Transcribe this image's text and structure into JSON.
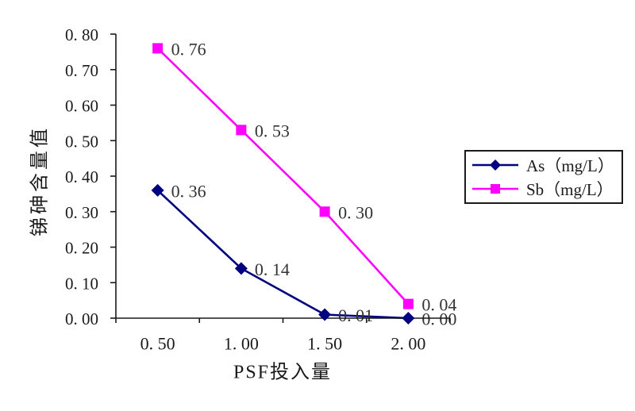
{
  "chart_data": {
    "type": "line",
    "title": "",
    "xlabel": "PSF投入量",
    "ylabel": "锑砷含量值",
    "x": [
      0.5,
      1.0,
      1.5,
      2.0
    ],
    "x_tick_labels": [
      "0. 50",
      "1. 00",
      "1. 50",
      "2. 00"
    ],
    "ylim": [
      0,
      0.8
    ],
    "y_tick_step": 0.1,
    "y_tick_labels": [
      "0. 00",
      "0. 10",
      "0. 20",
      "0. 30",
      "0. 40",
      "0. 50",
      "0. 60",
      "0. 70",
      "0. 80"
    ],
    "grid": false,
    "legend_position": "right",
    "series": [
      {
        "name": "As（mg/L）",
        "values": [
          0.36,
          0.14,
          0.01,
          0.0
        ],
        "point_labels": [
          "0. 36",
          "0. 14",
          "0. 01",
          "0. 00"
        ],
        "color": "#000080",
        "marker": "diamond"
      },
      {
        "name": "Sb（mg/L）",
        "values": [
          0.76,
          0.53,
          0.3,
          0.04
        ],
        "point_labels": [
          "0. 76",
          "0. 53",
          "0. 30",
          "0. 04"
        ],
        "color": "#FF00FF",
        "marker": "square"
      }
    ]
  },
  "colors": {
    "background": "#ffffff",
    "axis": "#1a1a1a",
    "tick_text": "#1a1a1a",
    "point_label_text": "#333333",
    "legend_border": "#1a1a1a"
  }
}
